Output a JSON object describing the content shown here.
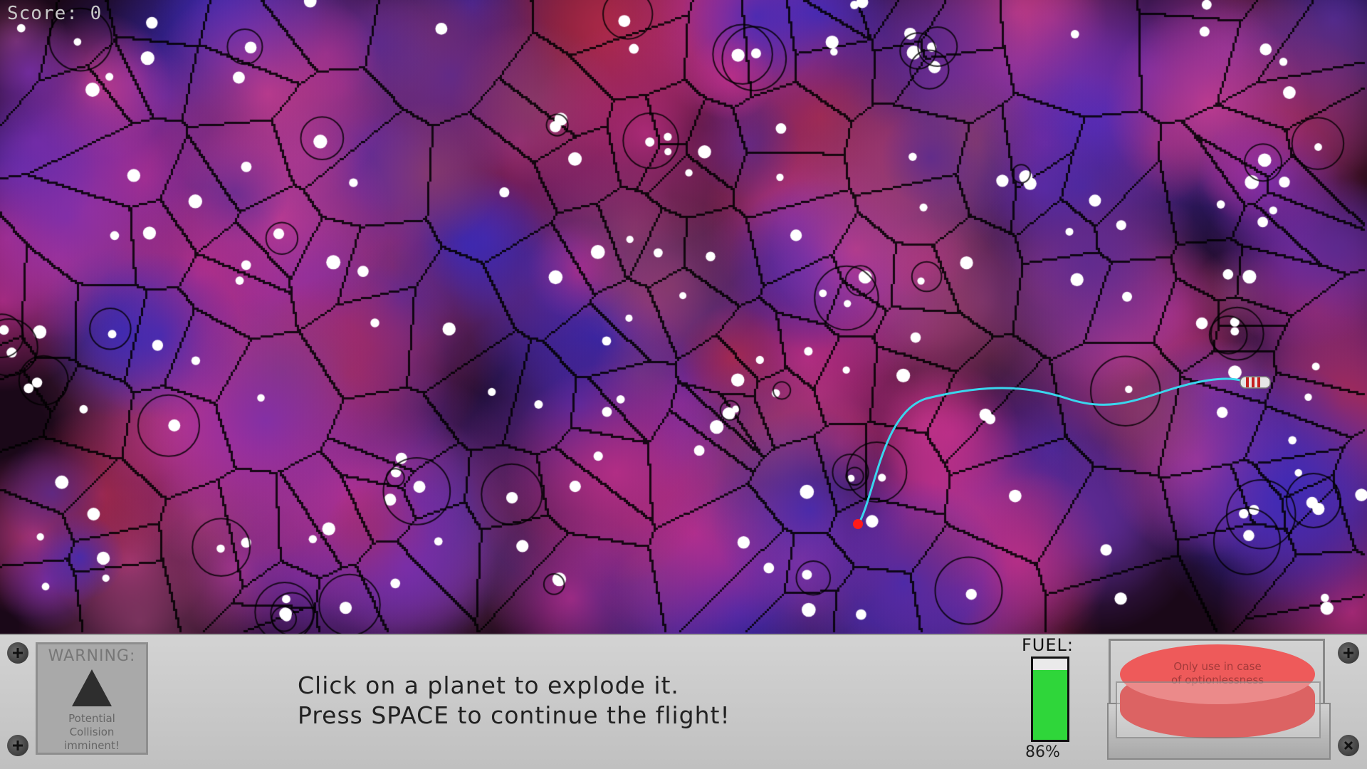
{
  "hud_score": {
    "text": "Score: 0"
  },
  "warning": {
    "title": "WARNING:",
    "message_line1": "Potential",
    "message_line2": "Collision",
    "message_line3": "imminent!",
    "icon": "warning-triangle-icon"
  },
  "instructions": {
    "line1": "Click on a planet to explode it.",
    "line2": "Press SPACE to continue the flight!"
  },
  "fuel": {
    "label": "FUEL:",
    "percent_text": "86%",
    "level": 0.86,
    "color": "#2fd63a"
  },
  "panic_button": {
    "line1": "Only use in case",
    "line2": "of optionlessness",
    "color": "#ee5a5a"
  },
  "colors": {
    "flight_path": "#3ad6ee",
    "target_marker": "#ff1a1a",
    "panel_bg": "#c9c9c9"
  },
  "icons": [
    "screw-icon",
    "ship-icon",
    "target-marker-icon"
  ]
}
